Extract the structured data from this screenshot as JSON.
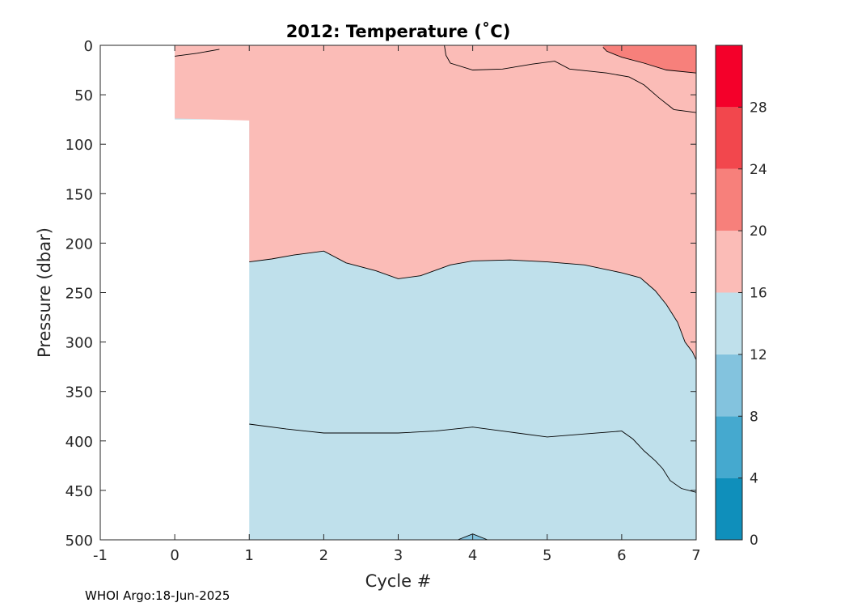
{
  "chart_data": {
    "type": "filled-contour",
    "title": "2012:  Temperature (˚C)",
    "xlabel": "Cycle #",
    "ylabel": "Pressure (dbar)",
    "xlim": [
      -1,
      7
    ],
    "ylim": [
      500,
      0
    ],
    "y_reversed": true,
    "xticks": [
      "-1",
      "0",
      "1",
      "2",
      "3",
      "4",
      "5",
      "6",
      "7"
    ],
    "yticks": [
      "0",
      "50",
      "100",
      "150",
      "200",
      "250",
      "300",
      "350",
      "400",
      "450",
      "500"
    ],
    "colorbar": {
      "range": [
        0,
        32
      ],
      "tick_labels": [
        "0",
        "4",
        "8",
        "12",
        "16",
        "20",
        "24",
        "28"
      ],
      "levels": [
        {
          "from": 0,
          "to": 4,
          "color": "#0f8fbb"
        },
        {
          "from": 4,
          "to": 8,
          "color": "#45a9cf"
        },
        {
          "from": 8,
          "to": 12,
          "color": "#83c3de"
        },
        {
          "from": 12,
          "to": 16,
          "color": "#bfe0eb"
        },
        {
          "from": 16,
          "to": 20,
          "color": "#fbbcb7"
        },
        {
          "from": 20,
          "to": 24,
          "color": "#f7807b"
        },
        {
          "from": 24,
          "to": 28,
          "color": "#f2474d"
        },
        {
          "from": 28,
          "to": 32,
          "color": "#f4002a"
        }
      ]
    },
    "data_coverage": [
      {
        "x_from": 0,
        "x_to": 1,
        "max_pressure": 75
      },
      {
        "x_from": 1,
        "x_to": 7,
        "max_pressure": 500
      }
    ],
    "regions": [
      {
        "band": "16-20",
        "color": "#fbbcb7",
        "polygon": [
          [
            0,
            0
          ],
          [
            7,
            0
          ],
          [
            7,
            318
          ],
          [
            6.95,
            310
          ],
          [
            6.85,
            300
          ],
          [
            6.75,
            280
          ],
          [
            6.6,
            262
          ],
          [
            6.45,
            248
          ],
          [
            6.25,
            235
          ],
          [
            6,
            230
          ],
          [
            5.5,
            222
          ],
          [
            5,
            219
          ],
          [
            4.5,
            217
          ],
          [
            4,
            218
          ],
          [
            3.7,
            222
          ],
          [
            3.3,
            233
          ],
          [
            3,
            236
          ],
          [
            2.7,
            228
          ],
          [
            2.3,
            220
          ],
          [
            2,
            208
          ],
          [
            1.6,
            212
          ],
          [
            1.3,
            216
          ],
          [
            1,
            219
          ],
          [
            1,
            76
          ],
          [
            0.5,
            75
          ],
          [
            0,
            74
          ]
        ]
      },
      {
        "band": "20-24",
        "color": "#f7807b",
        "polygon": [
          [
            5.75,
            0
          ],
          [
            7,
            0
          ],
          [
            7,
            28
          ],
          [
            6.6,
            25
          ],
          [
            6.3,
            18
          ],
          [
            6,
            12
          ],
          [
            5.8,
            6
          ],
          [
            5.75,
            2
          ]
        ]
      },
      {
        "band": "8-12",
        "color": "#83c3de",
        "polygon": [
          [
            3.8,
            500
          ],
          [
            4,
            494
          ],
          [
            4.2,
            500
          ]
        ]
      }
    ],
    "contours": [
      {
        "level": 16,
        "points": [
          [
            1,
            219
          ],
          [
            1.3,
            216
          ],
          [
            1.6,
            212
          ],
          [
            2,
            208
          ],
          [
            2.3,
            220
          ],
          [
            2.7,
            228
          ],
          [
            3,
            236
          ],
          [
            3.3,
            233
          ],
          [
            3.7,
            222
          ],
          [
            4,
            218
          ],
          [
            4.5,
            217
          ],
          [
            5,
            219
          ],
          [
            5.5,
            222
          ],
          [
            6,
            230
          ],
          [
            6.25,
            235
          ],
          [
            6.45,
            248
          ],
          [
            6.6,
            262
          ],
          [
            6.75,
            280
          ],
          [
            6.85,
            300
          ],
          [
            6.95,
            310
          ],
          [
            7,
            318
          ]
        ]
      },
      {
        "level": 16,
        "points": [
          [
            0,
            11
          ],
          [
            0.3,
            8
          ],
          [
            0.6,
            4
          ]
        ]
      },
      {
        "level": 16,
        "points": [
          [
            3.62,
            0
          ],
          [
            3.64,
            10
          ],
          [
            3.7,
            18
          ],
          [
            4,
            25
          ],
          [
            4.4,
            24
          ],
          [
            4.8,
            19
          ],
          [
            5.1,
            16
          ],
          [
            5.3,
            24
          ],
          [
            5.8,
            28
          ],
          [
            6.1,
            32
          ],
          [
            6.3,
            40
          ],
          [
            6.5,
            53
          ],
          [
            6.7,
            65
          ],
          [
            7,
            68
          ]
        ]
      },
      {
        "level": 20,
        "points": [
          [
            5.75,
            2
          ],
          [
            5.8,
            6
          ],
          [
            6,
            12
          ],
          [
            6.3,
            18
          ],
          [
            6.6,
            25
          ],
          [
            7,
            28
          ]
        ]
      },
      {
        "level": 12,
        "points": [
          [
            1,
            383
          ],
          [
            1.5,
            388
          ],
          [
            2,
            392
          ],
          [
            3,
            392
          ],
          [
            3.5,
            390
          ],
          [
            4,
            386
          ],
          [
            4.5,
            391
          ],
          [
            5,
            396
          ],
          [
            5.5,
            393
          ],
          [
            6,
            390
          ],
          [
            6.15,
            398
          ],
          [
            6.3,
            410
          ],
          [
            6.45,
            420
          ],
          [
            6.55,
            428
          ],
          [
            6.65,
            440
          ],
          [
            6.8,
            448
          ],
          [
            7,
            452
          ]
        ]
      },
      {
        "level": 8,
        "points": [
          [
            3.8,
            500
          ],
          [
            4,
            494
          ],
          [
            4.2,
            500
          ]
        ]
      }
    ]
  },
  "footer": "WHOI Argo:18-Jun-2025"
}
